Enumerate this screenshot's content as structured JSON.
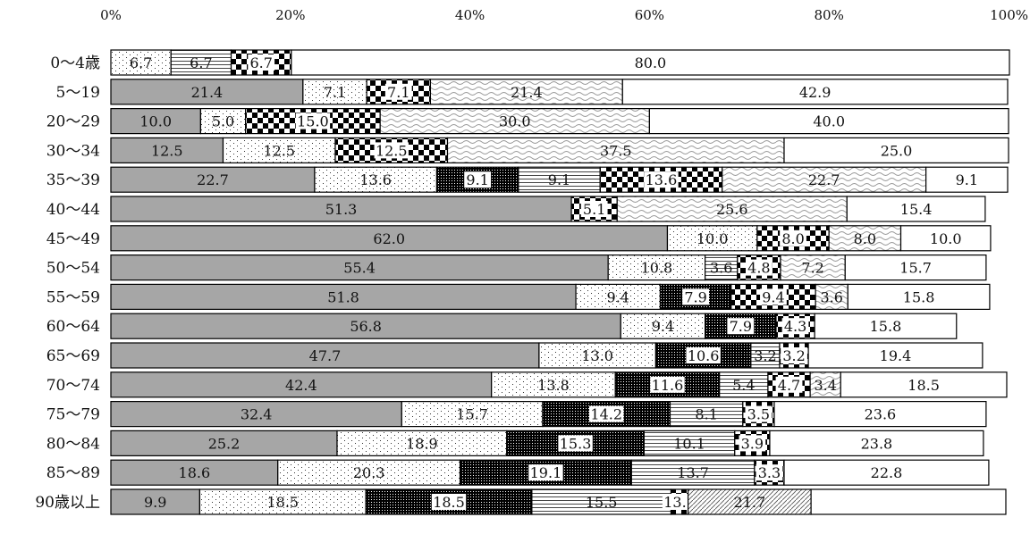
{
  "chart_data": {
    "type": "bar",
    "orientation": "horizontal",
    "stacked": true,
    "percent_stacked": true,
    "x_ticks": [
      "0%",
      "20%",
      "40%",
      "60%",
      "80%",
      "100%"
    ],
    "xlim": [
      0,
      100
    ],
    "grid": false,
    "legend": "none",
    "categories": [
      "0〜4歳",
      "5〜19",
      "20〜29",
      "30〜34",
      "35〜39",
      "40〜44",
      "45〜49",
      "50〜54",
      "55〜59",
      "60〜64",
      "65〜69",
      "70〜74",
      "75〜79",
      "80〜84",
      "85〜89",
      "90歳以上"
    ],
    "series": [
      {
        "pattern": "solid-gray",
        "values": [
          0,
          21.4,
          10.0,
          12.5,
          22.7,
          51.3,
          62.0,
          55.4,
          51.8,
          56.8,
          47.7,
          42.4,
          32.4,
          25.2,
          18.6,
          9.9
        ]
      },
      {
        "pattern": "sparse-dots",
        "values": [
          6.7,
          7.1,
          5.0,
          12.5,
          13.6,
          0,
          10.0,
          10.8,
          9.4,
          9.4,
          13.0,
          13.8,
          15.7,
          18.9,
          20.3,
          18.5
        ]
      },
      {
        "pattern": "dense-dots",
        "values": [
          0,
          0,
          0,
          0,
          9.1,
          0,
          0,
          0,
          7.9,
          7.9,
          10.6,
          11.6,
          14.2,
          15.3,
          19.1,
          18.5
        ]
      },
      {
        "pattern": "horizontal-lines",
        "values": [
          6.7,
          0,
          0,
          0,
          9.1,
          0,
          0,
          3.6,
          0,
          0,
          3.2,
          5.4,
          8.1,
          10.1,
          13.7,
          15.5
        ]
      },
      {
        "pattern": "checker",
        "values": [
          6.7,
          7.1,
          15.0,
          12.5,
          13.6,
          5.1,
          8.0,
          4.8,
          9.4,
          4.3,
          3.2,
          4.7,
          3.5,
          3.9,
          3.3,
          1.9
        ]
      },
      {
        "pattern": "waves",
        "values": [
          0,
          21.4,
          30.0,
          37.5,
          22.7,
          25.6,
          8.0,
          7.2,
          3.6,
          0,
          0,
          3.4,
          0,
          0,
          0,
          0
        ]
      },
      {
        "pattern": "diagonal-hatch",
        "values": [
          0,
          0,
          0,
          0,
          0,
          0,
          0,
          0,
          0,
          0,
          0,
          0,
          0,
          0,
          0,
          13.7
        ]
      },
      {
        "pattern": "white",
        "values": [
          80.0,
          42.9,
          40.0,
          25.0,
          9.1,
          15.4,
          10.0,
          15.7,
          15.8,
          15.8,
          19.4,
          18.5,
          23.6,
          23.8,
          22.8,
          21.7
        ]
      }
    ],
    "data_labels": [
      [
        "6.7",
        "6.7",
        "6.7",
        "80.0"
      ],
      [
        "21.4",
        "7.1",
        "7.1",
        "21.4",
        "42.9"
      ],
      [
        "10.0",
        "5.0",
        "15.0",
        "30.0",
        "40.0"
      ],
      [
        "12.5",
        "12.5",
        "12.5",
        "37.5",
        "25.0"
      ],
      [
        "22.7",
        "13.6",
        "9.1",
        "9.1",
        "13.6",
        "22.7",
        "9.1"
      ],
      [
        "51.3",
        "5.1",
        "25.6",
        "15.4"
      ],
      [
        "62.0",
        "10.0",
        "8.0",
        "8.0",
        "10.0"
      ],
      [
        "55.4",
        "10.8",
        "3.6",
        "4.8",
        "7.2",
        "15.7"
      ],
      [
        "51.8",
        "9.4",
        "7.9",
        "9.4",
        "3.6",
        "15.8"
      ],
      [
        "56.8",
        "9.4",
        "7.9",
        "4.3",
        "15.8"
      ],
      [
        "47.7",
        "13.0",
        "10.6",
        "3.2",
        "3.2",
        "19.4"
      ],
      [
        "42.4",
        "13.8",
        "11.6",
        "5.4",
        "4.7",
        "3.4",
        "18.5"
      ],
      [
        "32.4",
        "15.7",
        "14.2",
        "8.1",
        "3.5",
        "23.6"
      ],
      [
        "25.2",
        "18.9",
        "15.3",
        "10.1",
        "3.9",
        "23.8"
      ],
      [
        "18.6",
        "20.3",
        "19.1",
        "13.7",
        "3.3",
        "22.8"
      ],
      [
        "9.9",
        "18.5",
        "18.5",
        "15.5",
        "13.7",
        "21.7"
      ]
    ]
  }
}
